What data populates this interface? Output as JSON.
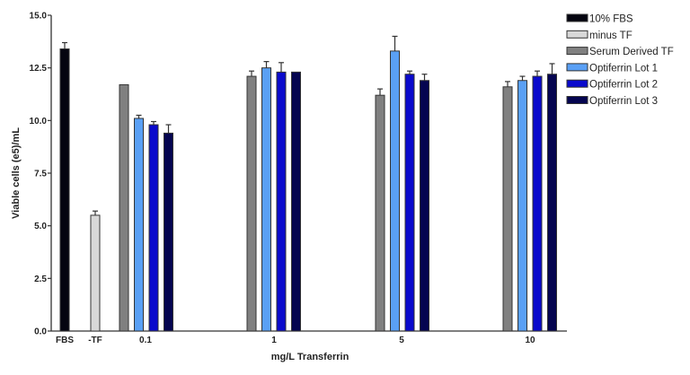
{
  "chart_data": {
    "type": "bar",
    "xlabel": "mg/L Transferrin",
    "ylabel": "Viable cells (e5)/mL",
    "ylim": [
      0,
      15
    ],
    "yticks": [
      "0.0",
      "2.5",
      "5.0",
      "7.5",
      "10.0",
      "12.5",
      "15.0"
    ],
    "grid": false,
    "legend_position": "top-right",
    "categories": [
      "FBS",
      "-TF",
      "0.1",
      "1",
      "5",
      "10"
    ],
    "series": [
      {
        "name": "10% FBS",
        "color": "#050510",
        "values": [
          13.4,
          null,
          null,
          null,
          null,
          null
        ],
        "error": [
          0.3,
          null,
          null,
          null,
          null,
          null
        ]
      },
      {
        "name": "minus TF",
        "color": "#d8d8d8",
        "values": [
          null,
          5.5,
          null,
          null,
          null,
          null
        ],
        "error": [
          null,
          0.2,
          null,
          null,
          null,
          null
        ]
      },
      {
        "name": "Serum Derived TF",
        "color": "#808080",
        "values": [
          null,
          null,
          11.7,
          12.1,
          11.2,
          11.6
        ],
        "error": [
          null,
          null,
          0,
          0.25,
          0.3,
          0.25
        ]
      },
      {
        "name": "Optiferrin Lot 1",
        "color": "#5aa0f5",
        "values": [
          null,
          null,
          10.1,
          12.5,
          13.3,
          11.9
        ],
        "error": [
          null,
          null,
          0.15,
          0.3,
          0.7,
          0.2
        ]
      },
      {
        "name": "Optiferrin Lot 2",
        "color": "#0a0acc",
        "values": [
          null,
          null,
          9.8,
          12.3,
          12.2,
          12.1
        ],
        "error": [
          null,
          null,
          0.15,
          0.45,
          0.15,
          0.25
        ]
      },
      {
        "name": "Optiferrin Lot 3",
        "color": "#050550",
        "values": [
          null,
          null,
          9.4,
          12.3,
          11.9,
          12.2
        ],
        "error": [
          null,
          null,
          0.4,
          0,
          0.3,
          0.5
        ]
      }
    ]
  }
}
